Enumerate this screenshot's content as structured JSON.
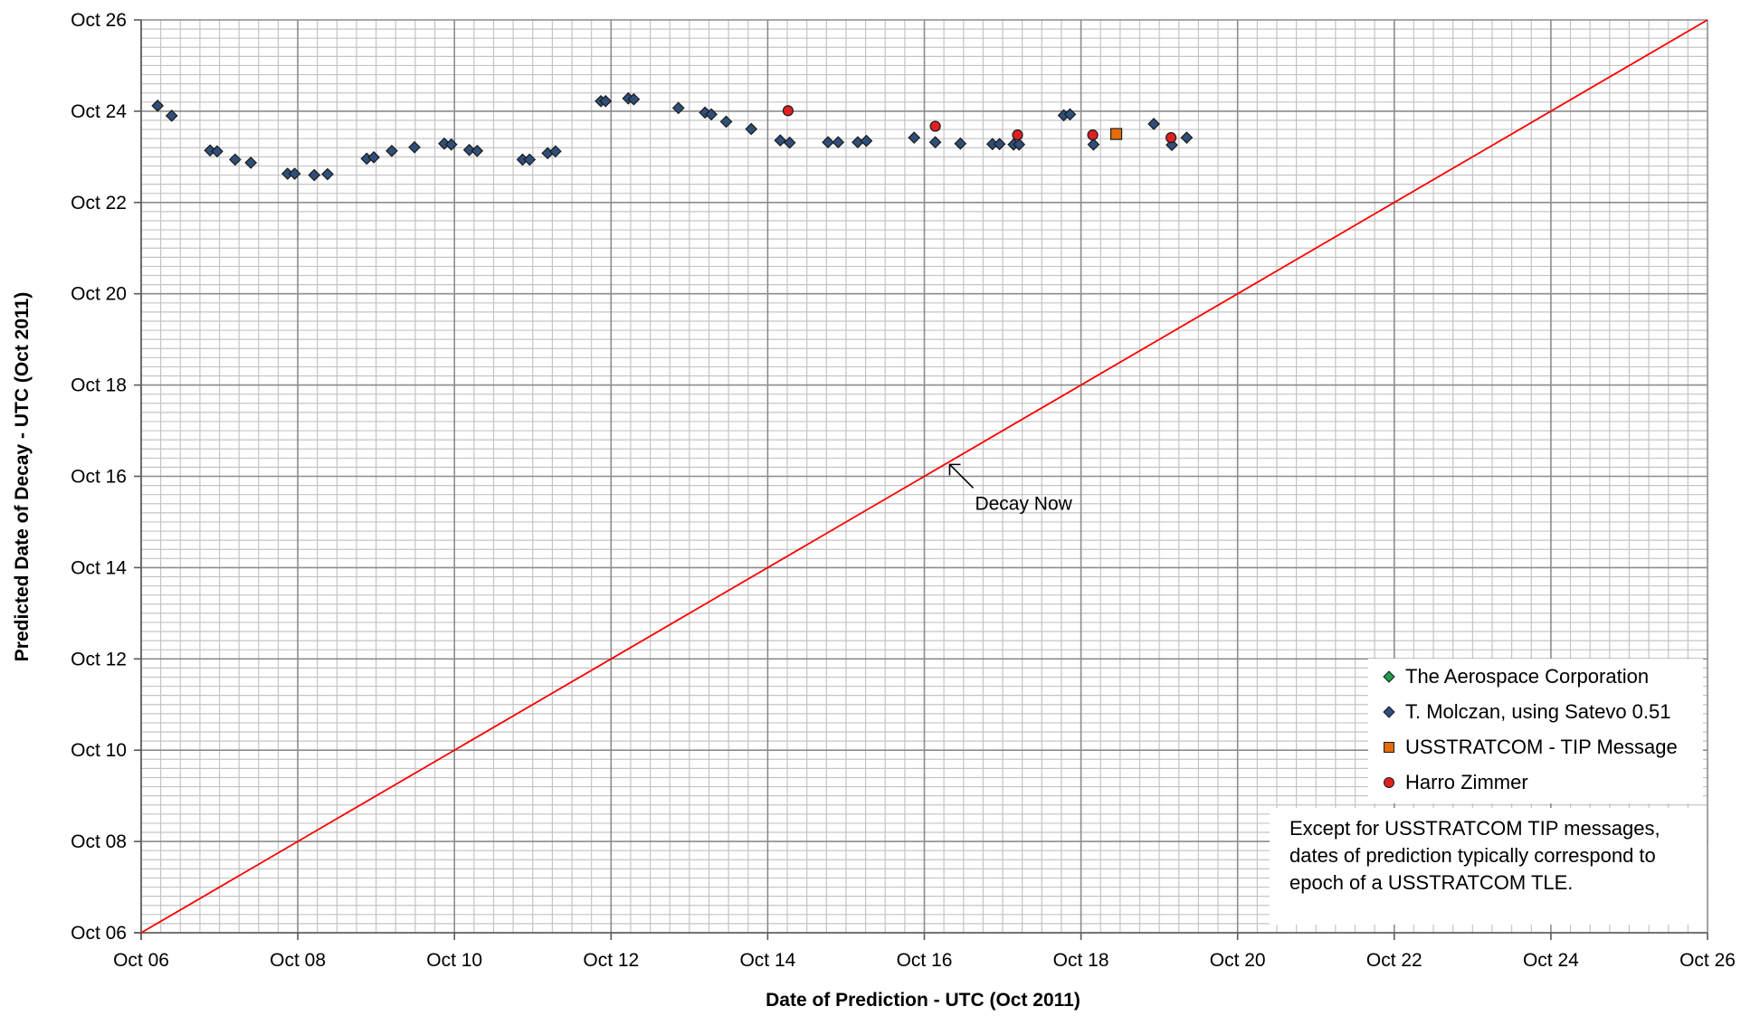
{
  "chart_data": {
    "type": "scatter",
    "title": "",
    "xlabel": "Date of Prediction - UTC (Oct 2011)",
    "ylabel": "Predicted Date of Decay - UTC (Oct 2011)",
    "xlim": [
      6,
      26
    ],
    "ylim": [
      6,
      26
    ],
    "x_ticks": [
      "Oct 06",
      "Oct 08",
      "Oct 10",
      "Oct 12",
      "Oct 14",
      "Oct 16",
      "Oct 18",
      "Oct 20",
      "Oct 22",
      "Oct 24",
      "Oct 26"
    ],
    "y_ticks": [
      "Oct 06",
      "Oct 08",
      "Oct 10",
      "Oct 12",
      "Oct 14",
      "Oct 16",
      "Oct 18",
      "Oct 20",
      "Oct 22",
      "Oct 24",
      "Oct 26"
    ],
    "grid": true,
    "legend_position": "bottom-right",
    "series": [
      {
        "name": "The Aerospace Corporation",
        "marker": "diamond",
        "color": "#1e9c4a",
        "points": []
      },
      {
        "name": "T. Molczan, using Satevo 0.51",
        "marker": "diamond",
        "color": "#2f4f7a",
        "points": [
          [
            6.21,
            24.12
          ],
          [
            6.39,
            23.9
          ],
          [
            6.88,
            23.14
          ],
          [
            6.97,
            23.12
          ],
          [
            7.2,
            22.94
          ],
          [
            7.4,
            22.87
          ],
          [
            7.87,
            22.63
          ],
          [
            7.96,
            22.63
          ],
          [
            8.21,
            22.6
          ],
          [
            8.38,
            22.62
          ],
          [
            8.88,
            22.96
          ],
          [
            8.97,
            22.99
          ],
          [
            9.2,
            23.13
          ],
          [
            9.49,
            23.21
          ],
          [
            9.87,
            23.29
          ],
          [
            9.96,
            23.27
          ],
          [
            10.19,
            23.15
          ],
          [
            10.29,
            23.13
          ],
          [
            10.87,
            22.94
          ],
          [
            10.96,
            22.94
          ],
          [
            11.19,
            23.08
          ],
          [
            11.29,
            23.12
          ],
          [
            11.87,
            24.22
          ],
          [
            11.93,
            24.22
          ],
          [
            12.22,
            24.28
          ],
          [
            12.29,
            24.26
          ],
          [
            12.86,
            24.07
          ],
          [
            13.2,
            23.97
          ],
          [
            13.28,
            23.93
          ],
          [
            13.47,
            23.77
          ],
          [
            13.79,
            23.61
          ],
          [
            14.16,
            23.36
          ],
          [
            14.28,
            23.31
          ],
          [
            14.77,
            23.32
          ],
          [
            14.9,
            23.32
          ],
          [
            15.15,
            23.32
          ],
          [
            15.26,
            23.35
          ],
          [
            15.87,
            23.42
          ],
          [
            16.14,
            23.32
          ],
          [
            16.46,
            23.29
          ],
          [
            16.87,
            23.28
          ],
          [
            16.96,
            23.28
          ],
          [
            17.14,
            23.27
          ],
          [
            17.21,
            23.27
          ],
          [
            17.78,
            23.91
          ],
          [
            17.86,
            23.93
          ],
          [
            18.16,
            23.27
          ],
          [
            18.93,
            23.72
          ],
          [
            19.16,
            23.26
          ],
          [
            19.35,
            23.42
          ]
        ]
      },
      {
        "name": "USSTRATCOM - TIP Message",
        "marker": "square",
        "color": "#e46c0a",
        "points": [
          [
            18.45,
            23.5
          ]
        ]
      },
      {
        "name": "Harro Zimmer",
        "marker": "circle",
        "color": "#e02020",
        "points": [
          [
            14.26,
            24.01
          ],
          [
            16.14,
            23.67
          ],
          [
            17.19,
            23.48
          ],
          [
            18.15,
            23.48
          ],
          [
            19.15,
            23.42
          ]
        ]
      }
    ],
    "reference_line": {
      "color": "#ff0000",
      "from": [
        6,
        6
      ],
      "to": [
        26,
        26
      ]
    },
    "annotations": [
      {
        "text": "Decay Now",
        "target": [
          16.3,
          16.3
        ]
      }
    ],
    "note": "Except for USSTRATCOM TIP messages, dates of prediction typically correspond to epoch of a USSTRATCOM TLE."
  }
}
